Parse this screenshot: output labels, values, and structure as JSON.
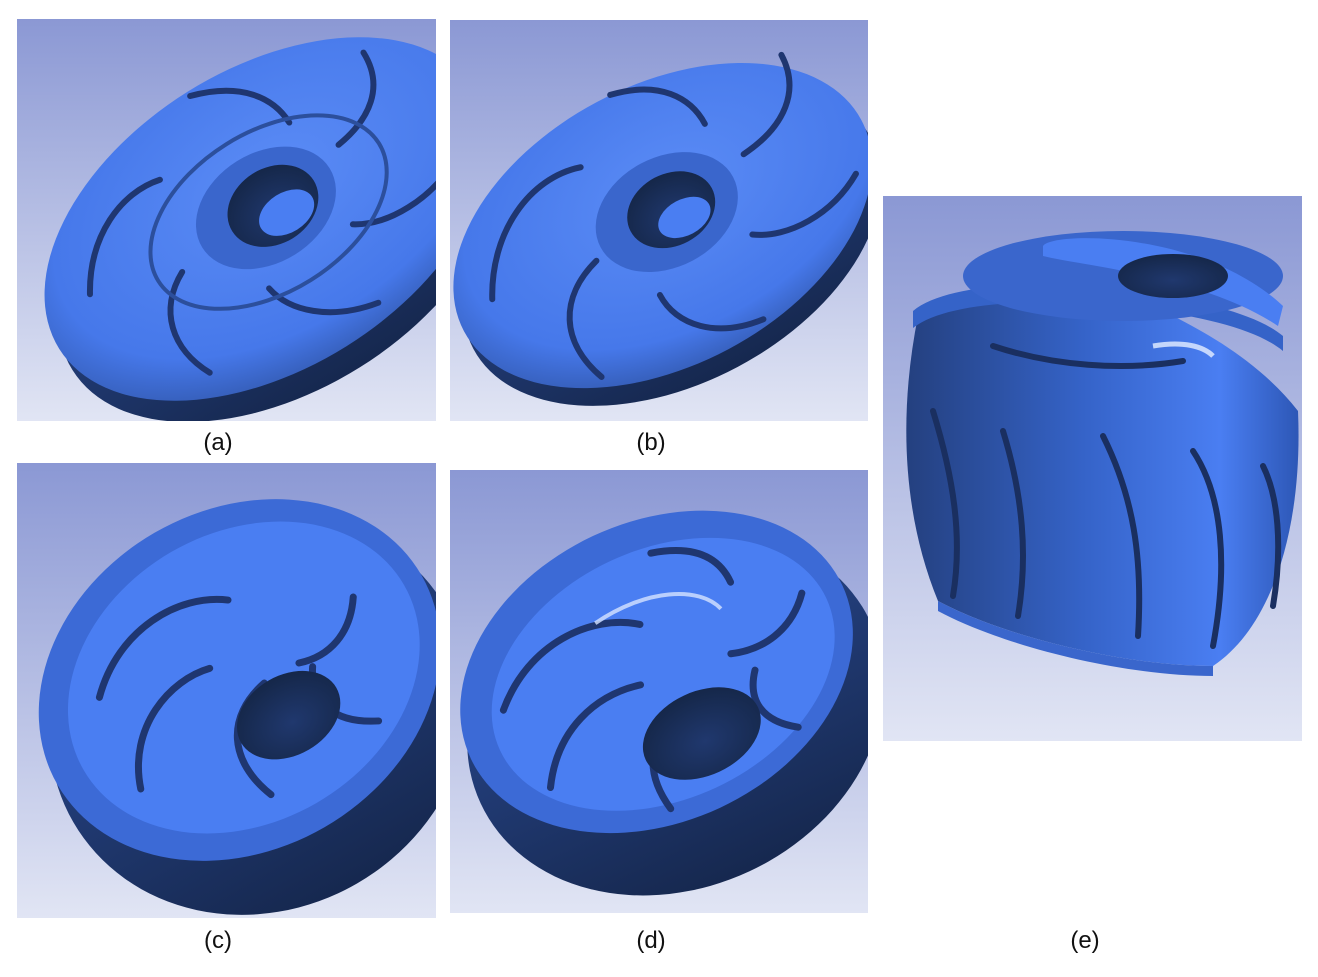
{
  "figure": {
    "panels": [
      {
        "id": "a",
        "caption": "(a)"
      },
      {
        "id": "b",
        "caption": "(b)"
      },
      {
        "id": "c",
        "caption": "(c)"
      },
      {
        "id": "d",
        "caption": "(d)"
      },
      {
        "id": "e",
        "caption": "(e)"
      }
    ],
    "colors": {
      "background_top": "#8d9ad6",
      "background_bottom": "#dde2f3",
      "impeller_blue": "#4a7ef2",
      "impeller_dark": "#1e3568",
      "impeller_highlight": "#d6e4ff"
    }
  }
}
